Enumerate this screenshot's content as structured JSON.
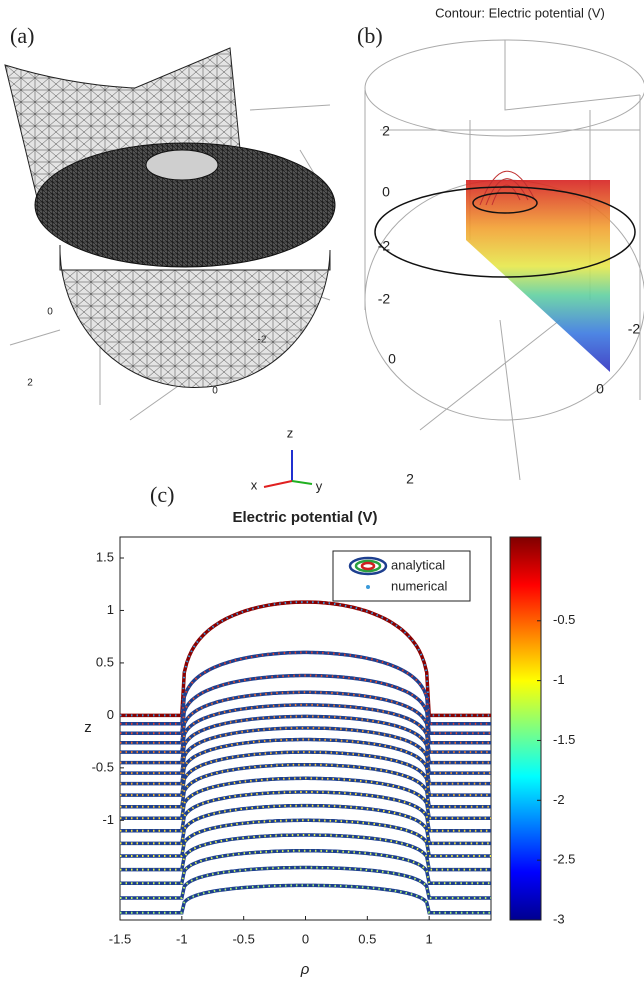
{
  "panel_a": {
    "label": "(a)",
    "tick_labels": [
      "0",
      "2",
      "0",
      "-2"
    ]
  },
  "panel_b": {
    "label": "(b)",
    "title": "Contour: Electric potential (V)",
    "tick_labels": [
      "2",
      "0",
      "-2",
      "-2",
      "0",
      "-2",
      "0",
      "2"
    ]
  },
  "axis_triad": {
    "z": "z",
    "x": "x",
    "y": "y"
  },
  "chart_data": {
    "type": "contour",
    "panel_label": "(c)",
    "title": "Electric potential (V)",
    "x_label": "ρ",
    "y_label": "z",
    "xlim": [
      -1.5,
      1.5
    ],
    "ylim": [
      -1.95,
      1.7
    ],
    "xticks": [
      -1.5,
      -1,
      -0.5,
      0,
      0.5,
      1
    ],
    "yticks": [
      -1,
      -0.5,
      0,
      0.5,
      1,
      1.5
    ],
    "series": [
      {
        "name": "analytical",
        "color": "#1d3f8f"
      },
      {
        "name": "numerical",
        "color": "#3a9ad9"
      }
    ],
    "legend_loc": "upper right",
    "colorbar": {
      "clim": [
        -3,
        0.2
      ],
      "ticks": [
        -3,
        -2.5,
        -2,
        -1.5,
        -1,
        -0.5
      ],
      "colormap": "jet"
    },
    "contours": [
      {
        "z_center": 1.08,
        "z_far": 0,
        "color": "#8b0000"
      },
      {
        "z_center": 0.6,
        "z_far": -0.08,
        "color": "#e0402a"
      },
      {
        "z_center": 0.38,
        "z_far": -0.17,
        "color": "#e8502a"
      },
      {
        "z_center": 0.22,
        "z_far": -0.26,
        "color": "#ee6a2a"
      },
      {
        "z_center": 0.1,
        "z_far": -0.35,
        "color": "#f07a28"
      },
      {
        "z_center": -0.01,
        "z_far": -0.45,
        "color": "#f28a2a"
      },
      {
        "z_center": -0.12,
        "z_far": -0.55,
        "color": "#f49a2c"
      },
      {
        "z_center": -0.23,
        "z_far": -0.65,
        "color": "#f6aa2e"
      },
      {
        "z_center": -0.35,
        "z_far": -0.76,
        "color": "#f8b830"
      },
      {
        "z_center": -0.47,
        "z_far": -0.87,
        "color": "#f9c632"
      },
      {
        "z_center": -0.6,
        "z_far": -0.98,
        "color": "#fad234"
      },
      {
        "z_center": -0.73,
        "z_far": -1.1,
        "color": "#fbdd36"
      },
      {
        "z_center": -0.86,
        "z_far": -1.22,
        "color": "#fbe63a"
      },
      {
        "z_center": -1.0,
        "z_far": -1.34,
        "color": "#f4ec40"
      },
      {
        "z_center": -1.14,
        "z_far": -1.47,
        "color": "#e6f04a"
      },
      {
        "z_center": -1.29,
        "z_far": -1.6,
        "color": "#d4f256"
      },
      {
        "z_center": -1.45,
        "z_far": -1.74,
        "color": "#c0f264"
      },
      {
        "z_center": -1.62,
        "z_far": -1.88,
        "color": "#aaf070"
      }
    ]
  }
}
